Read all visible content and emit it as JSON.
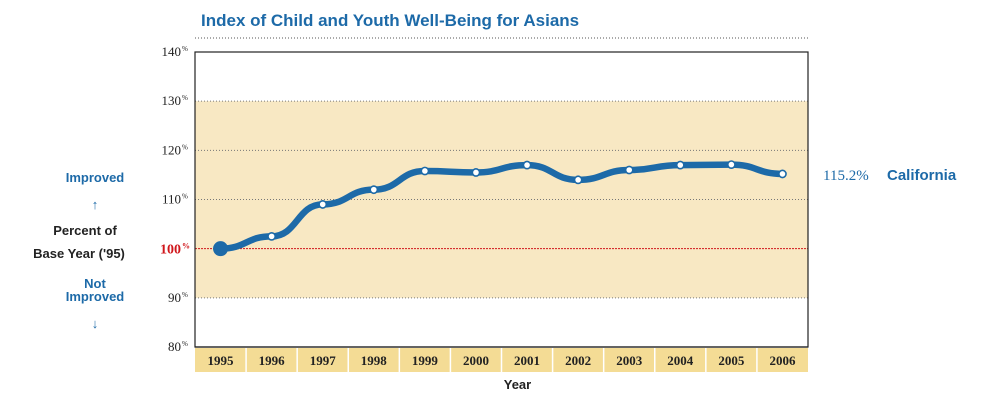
{
  "chart_data": {
    "type": "line",
    "title": "Index of Child and Youth Well-Being for Asians",
    "xlabel": "Year",
    "ylabel": "Percent of Base Year ('95)",
    "categories": [
      "1995",
      "1996",
      "1997",
      "1998",
      "1999",
      "2000",
      "2001",
      "2002",
      "2003",
      "2004",
      "2005",
      "2006"
    ],
    "series": [
      {
        "name": "California",
        "values": [
          100,
          102.5,
          109,
          112,
          115.8,
          115.5,
          117,
          114,
          116,
          117,
          117.1,
          115.2
        ]
      }
    ],
    "ylim": [
      80,
      140
    ],
    "yticks": [
      "80",
      "90",
      "110",
      "120",
      "130",
      "140"
    ],
    "ytick_unit": "%",
    "baseline": {
      "value": 100,
      "label": "100",
      "unit": "%"
    },
    "highlight_band": [
      90,
      130
    ],
    "end_label": {
      "value": "115.2%",
      "name": "California"
    },
    "side_labels": {
      "improved": "Improved",
      "percent_line1": "Percent of",
      "percent_line2": "Base Year ('95)",
      "not_line1": "Not",
      "not_line2": "Improved",
      "up_arrow": "↑",
      "down_arrow": "↓"
    },
    "colors": {
      "line": "#1d6aa8",
      "band": "#f8e8c3",
      "axis_strip": "#f4dc95",
      "baseline": "#d0161b",
      "title": "#1d6aa8"
    }
  }
}
